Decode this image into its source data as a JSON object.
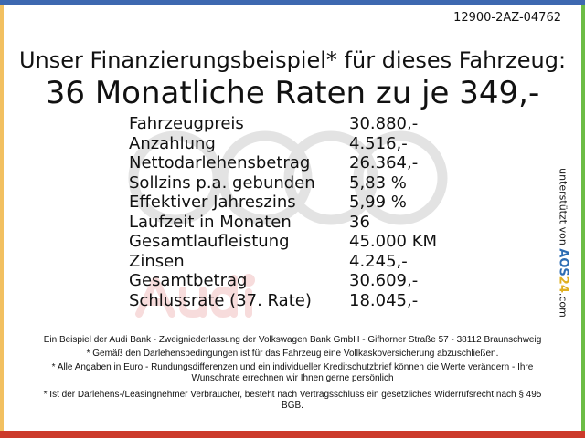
{
  "reference_code": "12900-2AZ-04762",
  "headline": "Unser Finanzierungsbeispiel* für dieses Fahrzeug:",
  "rate_line": "36 Monatliche Raten zu je 349,-",
  "watermark": {
    "brand": "Audi",
    "ring_color": "#e3e3e3",
    "text_color": "#f7dcdc"
  },
  "financing": [
    {
      "label": "Fahrzeugpreis",
      "value": "30.880,-"
    },
    {
      "label": "Anzahlung",
      "value": "4.516,-"
    },
    {
      "label": "Nettodarlehensbetrag",
      "value": "26.364,-"
    },
    {
      "label": "Sollzins p.a. gebunden",
      "value": "5,83 %"
    },
    {
      "label": "Effektiver Jahreszins",
      "value": "5,99 %"
    },
    {
      "label": "Laufzeit in Monaten",
      "value": "36"
    },
    {
      "label": "Gesamtlaufleistung",
      "value": "45.000 KM"
    },
    {
      "label": "Zinsen",
      "value": "4.245,-"
    },
    {
      "label": "Gesamtbetrag",
      "value": "30.609,-"
    },
    {
      "label": "Schlussrate (37. Rate)",
      "value": "18.045,-"
    }
  ],
  "sidebar": {
    "prefix": "unterstützt von",
    "logo_a": "AOS",
    "logo_b": "24",
    "suffix": ".com"
  },
  "footnotes": [
    "Ein Beispiel der Audi Bank -  Zweigniederlassung der Volkswagen Bank GmbH - Gifhorner Straße 57 - 38112 Braunschweig",
    "* Gemäß den Darlehensbedingungen ist für das Fahrzeug eine Vollkaskoversicherung abzuschließen.",
    "* Alle Angaben in Euro - Rundungsdifferenzen und ein individueller Kreditschutzbrief können die Werte verändern - Ihre Wunschrate errechnen wir Ihnen gerne persönlich",
    "* Ist der Darlehens-/Leasingnehmer Verbraucher, besteht nach Vertragsschluss ein gesetzliches Widerrufsrecht nach § 495 BGB."
  ],
  "colors": {
    "top": "#3d68b0",
    "left": "#f2c060",
    "right": "#6cbd45",
    "bottom": "#cc3a2a"
  }
}
